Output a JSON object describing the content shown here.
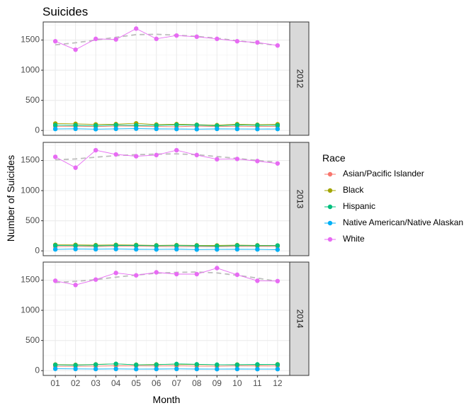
{
  "chart_data": {
    "type": "line",
    "title": "Suicides",
    "xlabel": "Month",
    "ylabel": "Number of Suicides",
    "x": [
      "01",
      "02",
      "03",
      "04",
      "05",
      "06",
      "07",
      "08",
      "09",
      "10",
      "11",
      "12"
    ],
    "ylim": [
      -80,
      1800
    ],
    "yticks": [
      0,
      500,
      1000,
      1500
    ],
    "legend": {
      "title": "Race",
      "position": "right",
      "entries": [
        "Asian/Pacific Islander",
        "Black",
        "Hispanic",
        "Native American/Native Alaskan",
        "White"
      ]
    },
    "colors": {
      "Asian/Pacific Islander": "#F8766D",
      "Black": "#A3A500",
      "Hispanic": "#00BF7D",
      "Native American/Native Alaskan": "#00B0F6",
      "White": "#E76BF3",
      "trend": "#bdbdbd"
    },
    "panels": [
      {
        "strip": "2012",
        "series": [
          {
            "name": "Asian/Pacific Islander",
            "values": [
              68,
              70,
              64,
              71,
              72,
              66,
              62,
              73,
              65,
              70,
              66,
              69
            ]
          },
          {
            "name": "Black",
            "values": [
              115,
              110,
              100,
              105,
              118,
              98,
              105,
              95,
              88,
              104,
              95,
              102
            ]
          },
          {
            "name": "Hispanic",
            "values": [
              88,
              85,
              80,
              90,
              85,
              84,
              92,
              90,
              78,
              90,
              86,
              84
            ]
          },
          {
            "name": "Native American/Native Alaskan",
            "values": [
              25,
              28,
              22,
              27,
              30,
              26,
              24,
              22,
              26,
              25,
              23,
              24
            ]
          },
          {
            "name": "White",
            "values": [
              1480,
              1340,
              1520,
              1510,
              1690,
              1520,
              1575,
              1555,
              1520,
              1480,
              1460,
              1410
            ]
          }
        ],
        "trend": [
          1420,
          1455,
          1500,
          1545,
          1590,
          1595,
          1580,
          1560,
          1530,
          1490,
          1450,
          1410
        ]
      },
      {
        "strip": "2013",
        "series": [
          {
            "name": "Asian/Pacific Islander",
            "values": [
              70,
              75,
              72,
              76,
              78,
              74,
              70,
              72,
              70,
              74,
              75,
              74
            ]
          },
          {
            "name": "Black",
            "values": [
              100,
              100,
              95,
              100,
              98,
              92,
              95,
              92,
              90,
              95,
              92,
              90
            ]
          },
          {
            "name": "Hispanic",
            "values": [
              90,
              88,
              85,
              92,
              90,
              86,
              88,
              85,
              80,
              88,
              86,
              88
            ]
          },
          {
            "name": "Native American/Native Alaskan",
            "values": [
              25,
              30,
              28,
              30,
              26,
              24,
              28,
              22,
              24,
              26,
              25,
              20
            ]
          },
          {
            "name": "White",
            "values": [
              1560,
              1380,
              1670,
              1600,
              1570,
              1590,
              1670,
              1590,
              1520,
              1525,
              1490,
              1450
            ]
          }
        ],
        "trend": [
          1510,
          1525,
          1555,
          1580,
          1595,
          1605,
          1610,
          1595,
          1565,
          1535,
          1500,
          1470
        ]
      },
      {
        "strip": "2014",
        "series": [
          {
            "name": "Asian/Pacific Islander",
            "values": [
              72,
              70,
              74,
              80,
              78,
              76,
              80,
              74,
              72,
              78,
              76,
              78
            ]
          },
          {
            "name": "Black",
            "values": [
              100,
              95,
              102,
              110,
              98,
              102,
              105,
              100,
              95,
              100,
              98,
              104
            ]
          },
          {
            "name": "Hispanic",
            "values": [
              95,
              90,
              100,
              112,
              95,
              98,
              110,
              104,
              98,
              96,
              102,
              100
            ]
          },
          {
            "name": "Native American/Native Alaskan",
            "values": [
              30,
              28,
              26,
              28,
              25,
              26,
              28,
              26,
              24,
              26,
              25,
              25
            ]
          },
          {
            "name": "White",
            "values": [
              1490,
              1420,
              1510,
              1620,
              1580,
              1630,
              1600,
              1600,
              1700,
              1590,
              1490,
              1485
            ]
          }
        ],
        "trend": [
          1460,
          1480,
          1510,
          1550,
          1585,
          1615,
          1630,
          1635,
          1620,
          1580,
          1535,
          1480
        ]
      }
    ]
  }
}
